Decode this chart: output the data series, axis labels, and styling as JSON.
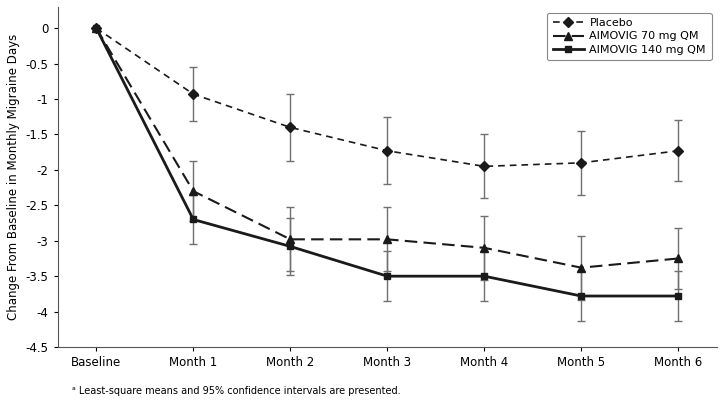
{
  "x_labels": [
    "Baseline",
    "Month 1",
    "Month 2",
    "Month 3",
    "Month 4",
    "Month 5",
    "Month 6"
  ],
  "x_values": [
    0,
    1,
    2,
    3,
    4,
    5,
    6
  ],
  "placebo_y": [
    0.0,
    -0.93,
    -1.4,
    -1.73,
    -1.95,
    -1.9,
    -1.73
  ],
  "placebo_err": [
    0.0,
    0.38,
    0.47,
    0.47,
    0.45,
    0.45,
    0.43
  ],
  "aim70_y": [
    0.0,
    -2.3,
    -2.98,
    -2.98,
    -3.1,
    -3.38,
    -3.25
  ],
  "aim70_err": [
    0.0,
    0.42,
    0.45,
    0.45,
    0.45,
    0.45,
    0.43
  ],
  "aim140_y": [
    0.0,
    -2.7,
    -3.08,
    -3.5,
    -3.5,
    -3.78,
    -3.78
  ],
  "aim140_err": [
    0.0,
    0.35,
    0.4,
    0.35,
    0.35,
    0.35,
    0.35
  ],
  "ylim": [
    -4.5,
    0.3
  ],
  "yticks": [
    0,
    -0.5,
    -1.0,
    -1.5,
    -2.0,
    -2.5,
    -3.0,
    -3.5,
    -4.0,
    -4.5
  ],
  "ylabel": "Change From Baseline in Monthly Migraine Days",
  "footnote": "ᵃ Least-square means and 95% confidence intervals are presented.",
  "legend_placebo": "Placebo",
  "legend_aim70": "AIMOVIG 70 mg QM",
  "legend_aim140": "AIMOVIG 140 mg QM",
  "line_color_dark": "#1a1a1a",
  "line_color_gray": "#707070",
  "elinewidth": 1.0,
  "capsize": 3,
  "lw_placebo": 1.2,
  "lw_aim70": 1.5,
  "lw_aim140": 2.0
}
